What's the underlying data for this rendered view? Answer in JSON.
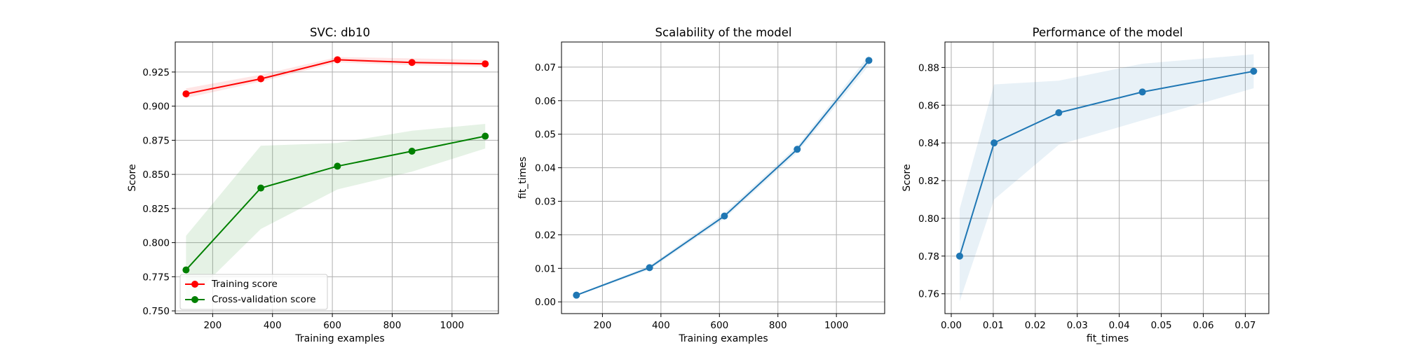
{
  "colors": {
    "train": "#ff0000",
    "cv": "#008000",
    "blue": "#1f77b4",
    "grid": "#b0b0b0",
    "axes": "#000000"
  },
  "chart_data": [
    {
      "type": "line",
      "title": "SVC: db10",
      "xlabel": "Training examples",
      "ylabel": "Score",
      "xlim": [
        75,
        1155
      ],
      "ylim": [
        0.748,
        0.947
      ],
      "xticks": [
        200,
        400,
        600,
        800,
        1000
      ],
      "yticks": [
        0.75,
        0.775,
        0.8,
        0.825,
        0.85,
        0.875,
        0.9,
        0.925
      ],
      "ytick_labels": [
        "0.750",
        "0.775",
        "0.800",
        "0.825",
        "0.850",
        "0.875",
        "0.900",
        "0.925"
      ],
      "grid": true,
      "legend_position": "lower-left",
      "x": [
        111,
        361,
        617,
        866,
        1111
      ],
      "series": [
        {
          "name": "Training score",
          "values": [
            0.909,
            0.92,
            0.934,
            0.932,
            0.931
          ],
          "band_low": [
            0.906,
            0.918,
            0.932,
            0.93,
            0.929
          ],
          "band_high": [
            0.913,
            0.923,
            0.936,
            0.935,
            0.934
          ]
        },
        {
          "name": "Cross-validation score",
          "values": [
            0.78,
            0.84,
            0.856,
            0.867,
            0.878
          ],
          "band_low": [
            0.756,
            0.81,
            0.839,
            0.852,
            0.869
          ],
          "band_high": [
            0.805,
            0.871,
            0.873,
            0.882,
            0.887
          ]
        }
      ]
    },
    {
      "type": "line",
      "title": "Scalability of the model",
      "xlabel": "Training examples",
      "ylabel": "fit_times",
      "xlim": [
        60,
        1165
      ],
      "ylim": [
        -0.0035,
        0.0775
      ],
      "xticks": [
        200,
        400,
        600,
        800,
        1000
      ],
      "yticks": [
        0,
        0.01,
        0.02,
        0.03,
        0.04,
        0.05,
        0.06,
        0.07
      ],
      "ytick_labels": [
        "0.00",
        "0.01",
        "0.02",
        "0.03",
        "0.04",
        "0.05",
        "0.06",
        "0.07"
      ],
      "grid": true,
      "x": [
        111,
        361,
        617,
        866,
        1111
      ],
      "series": [
        {
          "values": [
            0.002,
            0.0102,
            0.0256,
            0.0455,
            0.072
          ],
          "band_low": [
            0.0018,
            0.0096,
            0.0248,
            0.0445,
            0.0705
          ],
          "band_high": [
            0.0022,
            0.0108,
            0.0265,
            0.0465,
            0.0735
          ]
        }
      ]
    },
    {
      "type": "line",
      "title": "Performance of the model",
      "xlabel": "fit_times",
      "ylabel": "Score",
      "xlim": [
        -0.0015,
        0.0756
      ],
      "ylim": [
        0.7495,
        0.8935
      ],
      "xticks": [
        0,
        0.01,
        0.02,
        0.03,
        0.04,
        0.05,
        0.06,
        0.07
      ],
      "xtick_labels": [
        "0.00",
        "0.01",
        "0.02",
        "0.03",
        "0.04",
        "0.05",
        "0.06",
        "0.07"
      ],
      "yticks": [
        0.76,
        0.78,
        0.8,
        0.82,
        0.84,
        0.86,
        0.88
      ],
      "ytick_labels": [
        "0.76",
        "0.78",
        "0.80",
        "0.82",
        "0.84",
        "0.86",
        "0.88"
      ],
      "grid": true,
      "x": [
        0.002,
        0.0102,
        0.0256,
        0.0455,
        0.072
      ],
      "series": [
        {
          "values": [
            0.78,
            0.84,
            0.856,
            0.867,
            0.878
          ],
          "band_low": [
            0.756,
            0.81,
            0.839,
            0.852,
            0.869
          ],
          "band_high": [
            0.805,
            0.871,
            0.873,
            0.882,
            0.887
          ]
        }
      ]
    }
  ]
}
